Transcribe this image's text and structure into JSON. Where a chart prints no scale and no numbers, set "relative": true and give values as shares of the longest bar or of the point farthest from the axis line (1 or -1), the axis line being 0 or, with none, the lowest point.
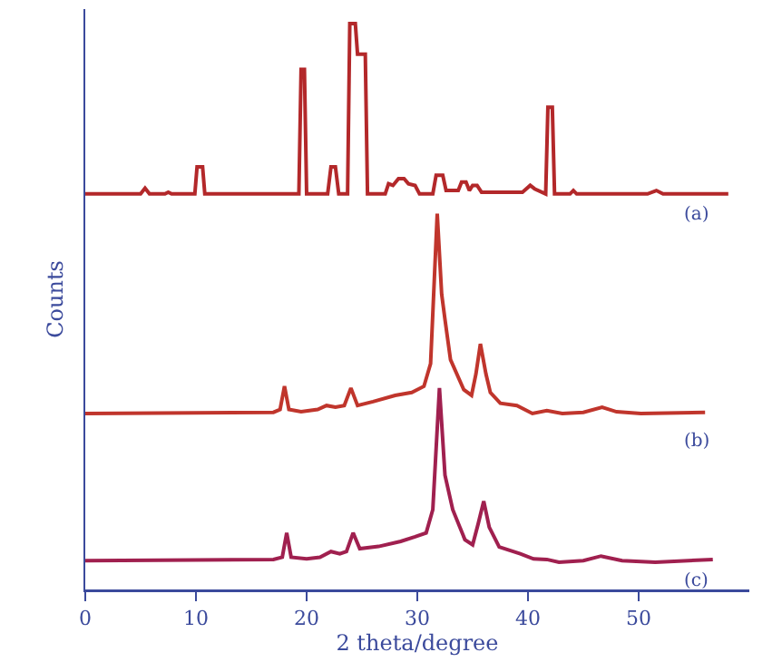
{
  "chart_data": {
    "type": "line",
    "relative": true,
    "xlim": [
      0,
      60
    ],
    "xticks": [
      0,
      10,
      20,
      30,
      40,
      50
    ],
    "tick_labels": "x",
    "xlabel": "2 theta/degree",
    "ylabel": "Counts",
    "annotations": [
      "(a)",
      "(b)",
      "(c)"
    ],
    "series": [
      {
        "color": "#b3282a",
        "x": [
          0,
          5,
          5.4,
          5.8,
          7.2,
          7.5,
          7.8,
          9.9,
          10.1,
          10.6,
          10.8,
          19.3,
          19.5,
          19.8,
          20,
          21.9,
          22.2,
          22.6,
          22.9,
          23.7,
          23.9,
          24.4,
          24.6,
          25.3,
          25.5,
          27.1,
          27.4,
          27.8,
          28.3,
          28.8,
          29.2,
          29.8,
          30.2,
          31.4,
          31.7,
          32.3,
          32.6,
          33.7,
          34.0,
          34.4,
          34.7,
          35.0,
          35.4,
          35.8,
          39.5,
          40.2,
          40.6,
          41.6,
          41.8,
          42.2,
          42.4,
          43.8,
          44.1,
          44.4,
          50.8,
          51.6,
          52.2,
          58.1
        ],
        "values": [
          0.699,
          0.699,
          0.709,
          0.699,
          0.699,
          0.702,
          0.699,
          0.699,
          0.747,
          0.747,
          0.699,
          0.699,
          0.919,
          0.919,
          0.699,
          0.699,
          0.747,
          0.747,
          0.699,
          0.699,
          1,
          1,
          0.946,
          0.946,
          0.699,
          0.699,
          0.717,
          0.714,
          0.726,
          0.726,
          0.717,
          0.714,
          0.699,
          0.699,
          0.732,
          0.732,
          0.705,
          0.705,
          0.72,
          0.72,
          0.705,
          0.714,
          0.714,
          0.702,
          0.702,
          0.714,
          0.708,
          0.699,
          0.852,
          0.852,
          0.699,
          0.699,
          0.705,
          0.699,
          0.699,
          0.705,
          0.699,
          0.699
        ]
      },
      {
        "color": "#c0352c",
        "x": [
          0,
          17,
          17.6,
          18.0,
          18.4,
          19.5,
          21.0,
          21.8,
          22.6,
          23.4,
          24.0,
          24.6,
          26,
          28,
          29.5,
          30.6,
          31.2,
          31.8,
          32.2,
          32.5,
          33,
          34.2,
          34.9,
          35.3,
          35.7,
          36.2,
          36.6,
          37.5,
          39,
          40.4,
          41.7,
          43.1,
          45,
          46.7,
          48,
          50.2,
          56
        ],
        "values": [
          0.311,
          0.313,
          0.318,
          0.359,
          0.318,
          0.314,
          0.318,
          0.325,
          0.322,
          0.325,
          0.356,
          0.325,
          0.332,
          0.343,
          0.348,
          0.359,
          0.399,
          0.664,
          0.522,
          0.477,
          0.406,
          0.353,
          0.343,
          0.381,
          0.434,
          0.381,
          0.348,
          0.329,
          0.325,
          0.311,
          0.316,
          0.311,
          0.313,
          0.322,
          0.314,
          0.311,
          0.313
        ]
      },
      {
        "color": "#a0204f",
        "x": [
          0,
          17,
          17.8,
          18.2,
          18.6,
          20,
          21.2,
          22.2,
          23,
          23.6,
          24.2,
          24.8,
          26.5,
          28.5,
          29.8,
          30.8,
          31.4,
          32.0,
          32.5,
          33.2,
          34.3,
          35.0,
          35.5,
          36.0,
          36.5,
          37.4,
          39.3,
          40.5,
          41.7,
          42.8,
          45,
          46.6,
          48.5,
          51.5,
          56.7
        ],
        "values": [
          0.051,
          0.053,
          0.057,
          0.1,
          0.057,
          0.054,
          0.057,
          0.067,
          0.063,
          0.067,
          0.1,
          0.072,
          0.076,
          0.085,
          0.093,
          0.1,
          0.141,
          0.356,
          0.202,
          0.141,
          0.088,
          0.079,
          0.116,
          0.156,
          0.11,
          0.075,
          0.063,
          0.054,
          0.053,
          0.048,
          0.051,
          0.059,
          0.051,
          0.048,
          0.053
        ]
      }
    ]
  }
}
